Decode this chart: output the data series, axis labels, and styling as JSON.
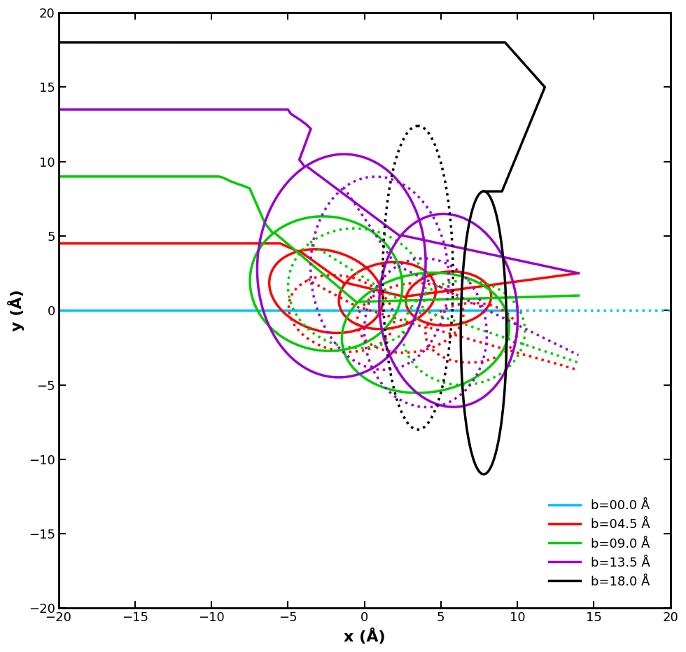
{
  "xlabel": "x (Å)",
  "ylabel": "y (Å)",
  "xlim": [
    -20,
    20
  ],
  "ylim": [
    -20,
    20
  ],
  "xticks": [
    -20,
    -15,
    -10,
    -5,
    0,
    5,
    10,
    15,
    20
  ],
  "yticks": [
    -20,
    -15,
    -10,
    -5,
    0,
    5,
    10,
    15,
    20
  ],
  "legend_entries": [
    {
      "label": "b=00.0 Å",
      "color": "#00bfff"
    },
    {
      "label": "b=04.5 Å",
      "color": "#ff0000"
    },
    {
      "label": "b=09.0 Å",
      "color": "#00cc00"
    },
    {
      "label": "b=13.5 Å",
      "color": "#9900cc"
    },
    {
      "label": "b=18.0 Å",
      "color": "#000000"
    }
  ],
  "background_color": "#ffffff",
  "lw": 2.5
}
